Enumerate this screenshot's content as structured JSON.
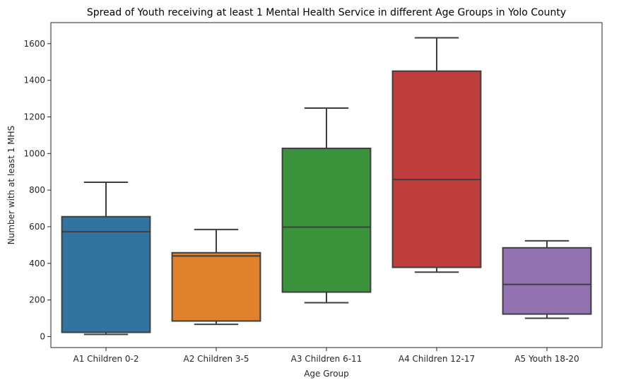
{
  "chart_data": {
    "type": "box",
    "title": "Spread of Youth receiving at least 1 Mental Health Service in different Age Groups in Yolo County",
    "xlabel": "Age Group",
    "ylabel": "Number with at least 1 MHS",
    "ylim": [
      -60,
      1715
    ],
    "yticks": [
      0,
      200,
      400,
      600,
      800,
      1000,
      1200,
      1400,
      1600
    ],
    "grid": false,
    "categories": [
      "A1 Children 0-2",
      "A2 Children 3-5",
      "A3 Children 6-11",
      "A4 Children 12-17",
      "A5 Youth 18-20"
    ],
    "boxes": [
      {
        "category": "A1 Children 0-2",
        "min": 12,
        "q1": 23,
        "median": 573,
        "q3": 655,
        "max": 843,
        "color": "#3274a1"
      },
      {
        "category": "A2 Children 3-5",
        "min": 67,
        "q1": 85,
        "median": 440,
        "q3": 458,
        "max": 585,
        "color": "#e1812c"
      },
      {
        "category": "A3 Children 6-11",
        "min": 185,
        "q1": 243,
        "median": 598,
        "q3": 1028,
        "max": 1248,
        "color": "#3a923a"
      },
      {
        "category": "A4 Children 12-17",
        "min": 352,
        "q1": 378,
        "median": 858,
        "q3": 1450,
        "max": 1632,
        "color": "#c03d3e"
      },
      {
        "category": "A5 Youth 18-20",
        "min": 100,
        "q1": 123,
        "median": 285,
        "q3": 485,
        "max": 523,
        "color": "#9372b2"
      }
    ]
  }
}
